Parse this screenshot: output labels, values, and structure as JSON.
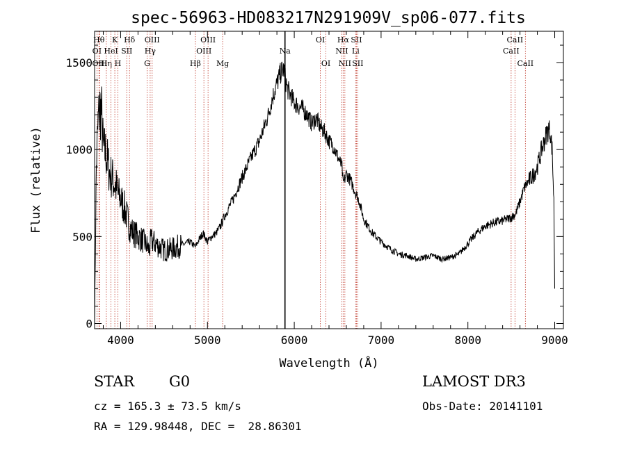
{
  "chart_data": {
    "type": "line",
    "title": "spec-56963-HD083217N291909V_sp06-077.fits",
    "xlabel": "Wavelength (Å)",
    "ylabel": "Flux (relative)",
    "xlim": [
      3700,
      9100
    ],
    "ylim": [
      -30,
      1680
    ],
    "xticks": [
      4000,
      5000,
      6000,
      7000,
      8000,
      9000
    ],
    "yticks": [
      0,
      500,
      1000,
      1500
    ],
    "xtick_labels": [
      "4000",
      "5000",
      "6000",
      "7000",
      "8000",
      "9000"
    ],
    "ytick_labels": [
      "0",
      "500",
      "1000",
      "1500"
    ],
    "grid": false,
    "series": [
      {
        "name": "spectrum",
        "x": [
          3700,
          3720,
          3740,
          3760,
          3780,
          3800,
          3830,
          3860,
          3880,
          3900,
          3930,
          3950,
          3970,
          4000,
          4020,
          4050,
          4080,
          4100,
          4150,
          4200,
          4250,
          4300,
          4330,
          4350,
          4400,
          4450,
          4500,
          4600,
          4700,
          4800,
          4860,
          4900,
          4950,
          5000,
          5050,
          5100,
          5150,
          5200,
          5300,
          5400,
          5500,
          5600,
          5700,
          5750,
          5800,
          5850,
          5880,
          5900,
          5920,
          5950,
          6000,
          6050,
          6100,
          6150,
          6200,
          6250,
          6300,
          6350,
          6400,
          6450,
          6500,
          6550,
          6563,
          6600,
          6650,
          6700,
          6750,
          6800,
          6900,
          7000,
          7100,
          7200,
          7300,
          7400,
          7500,
          7600,
          7700,
          7800,
          7900,
          8000,
          8100,
          8200,
          8300,
          8400,
          8450,
          8500,
          8550,
          8600,
          8650,
          8700,
          8750,
          8800,
          8850,
          8900,
          8930,
          8950,
          8970,
          8990,
          9000
        ],
        "y": [
          10,
          900,
          1150,
          1250,
          1200,
          1000,
          980,
          900,
          850,
          840,
          800,
          780,
          740,
          720,
          690,
          650,
          600,
          560,
          520,
          500,
          480,
          450,
          420,
          480,
          460,
          440,
          420,
          430,
          450,
          470,
          440,
          480,
          520,
          470,
          500,
          520,
          560,
          620,
          720,
          840,
          950,
          1050,
          1200,
          1300,
          1380,
          1450,
          1460,
          1400,
          1350,
          1320,
          1270,
          1250,
          1230,
          1200,
          1150,
          1180,
          1130,
          1100,
          1050,
          1020,
          960,
          900,
          800,
          860,
          820,
          760,
          700,
          600,
          520,
          470,
          430,
          400,
          390,
          370,
          380,
          390,
          370,
          380,
          400,
          460,
          520,
          560,
          580,
          590,
          600,
          610,
          630,
          700,
          780,
          820,
          850,
          900,
          1000,
          1080,
          1120,
          1100,
          1000,
          700,
          200
        ]
      }
    ],
    "lines": [
      {
        "name": "OI",
        "x": 3727,
        "row": 2
      },
      {
        "name": "Hθ",
        "x": 3750,
        "row": 1
      },
      {
        "name": "OIII",
        "x": 3760,
        "row": 3
      },
      {
        "name": "Hη",
        "x": 3835,
        "row": 3
      },
      {
        "name": "HeI",
        "x": 3889,
        "row": 2
      },
      {
        "name": "K",
        "x": 3933,
        "row": 1
      },
      {
        "name": "H",
        "x": 3968,
        "row": 3
      },
      {
        "name": "SII",
        "x": 4070,
        "row": 2
      },
      {
        "name": "Hδ",
        "x": 4102,
        "row": 1
      },
      {
        "name": "G",
        "x": 4305,
        "row": 3
      },
      {
        "name": "Hγ",
        "x": 4340,
        "row": 2
      },
      {
        "name": "OIII",
        "x": 4363,
        "row": 1
      },
      {
        "name": "Hβ",
        "x": 4861,
        "row": 3
      },
      {
        "name": "OIII",
        "x": 4959,
        "row": 2
      },
      {
        "name": "OIII",
        "x": 5007,
        "row": 1
      },
      {
        "name": "Mg",
        "x": 5175,
        "row": 3
      },
      {
        "name": "Na",
        "x": 5893,
        "row": 2
      },
      {
        "name": "OI",
        "x": 6300,
        "row": 1
      },
      {
        "name": "OI",
        "x": 6364,
        "row": 3
      },
      {
        "name": "NII",
        "x": 6548,
        "row": 2
      },
      {
        "name": "Hα",
        "x": 6563,
        "row": 1
      },
      {
        "name": "NII",
        "x": 6583,
        "row": 3
      },
      {
        "name": "Li",
        "x": 6707,
        "row": 2
      },
      {
        "name": "SII",
        "x": 6716,
        "row": 1
      },
      {
        "name": "SII",
        "x": 6731,
        "row": 3
      },
      {
        "name": "CaII",
        "x": 8498,
        "row": 2
      },
      {
        "name": "CaII",
        "x": 8542,
        "row": 1
      },
      {
        "name": "CaII",
        "x": 8662,
        "row": 3
      }
    ],
    "marker_x": 5893
  },
  "info": {
    "class": "STAR",
    "subclass": "G0",
    "survey": "LAMOST DR3",
    "cz": "cz = 165.3 ± 73.5 km/s",
    "obs_date": "Obs-Date: 20141101",
    "coords": "RA = 129.98448, DEC =  28.86301"
  }
}
